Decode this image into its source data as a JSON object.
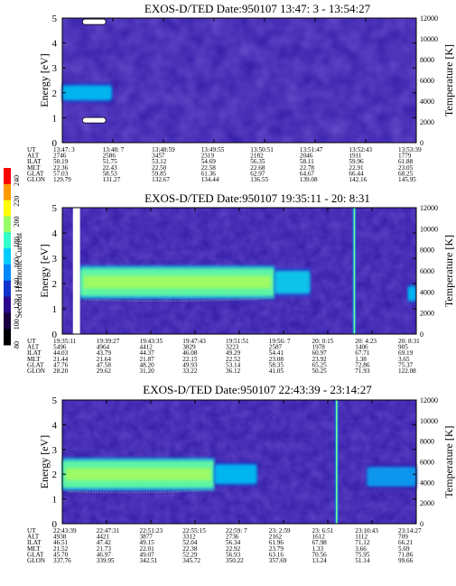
{
  "colorbar": {
    "label": "Second Harmonic Current",
    "ticks": [
      "240",
      "220",
      "200",
      "180",
      "160",
      "140",
      "120",
      "100",
      "80"
    ],
    "colors": [
      "#ff0000",
      "#ff9900",
      "#ffff00",
      "#99ff66",
      "#33ffcc",
      "#00ccff",
      "#0088ff",
      "#1133cc",
      "#2a0a8a",
      "#1a0040",
      "#000000"
    ]
  },
  "panels": [
    {
      "title": "EXOS-D/TED   Date:950107  13:47: 3 - 13:54:27",
      "ylabel": "Energy [eV]",
      "y2label": "Temperature [K]",
      "eph_labels": [
        "UT",
        "ALT",
        "ILAT",
        "MLT",
        "GLAT",
        "GLON"
      ],
      "eph_columns": [
        [
          "13:47: 3",
          "2746",
          "50.19",
          "22.36",
          "57.03",
          "129.79"
        ],
        [
          "13:48: 7",
          "2586",
          "51.75",
          "22.43",
          "58.53",
          "131.27"
        ],
        [
          "13:48:59",
          "3457",
          "53.12",
          "22.50",
          "59.85",
          "132.67"
        ],
        [
          "13:49:55",
          "2319",
          "54.69",
          "22.58",
          "61.36",
          "134.44"
        ],
        [
          "13:50:51",
          "2182",
          "56.35",
          "22.68",
          "62.97",
          "136.55"
        ],
        [
          "13:51:47",
          "2046",
          "58.11",
          "22.78",
          "64.67",
          "139.08"
        ],
        [
          "13:52:43",
          "1911",
          "59.96",
          "22.91",
          "66.44",
          "142.16"
        ],
        [
          "13:53:39",
          "1779",
          "61.88",
          "23.05",
          "68.25",
          "145.95"
        ]
      ]
    },
    {
      "title": "EXOS-D/TED   Date:950107  19:35:11 - 20: 8:31",
      "ylabel": "Energy [eV]",
      "y2label": "Temperature [K]",
      "eph_labels": [
        "UT",
        "ALT",
        "ILAT",
        "MLT",
        "GLAT",
        "GLON"
      ],
      "eph_columns": [
        [
          "19:35:11",
          "5496",
          "44.03",
          "21.44",
          "47.76",
          "28.20"
        ],
        [
          "19:39:27",
          "4964",
          "43.79",
          "21.64",
          "47.58",
          "29.62"
        ],
        [
          "19:43:35",
          "4412",
          "44.37",
          "21.87",
          "48.20",
          "31.20"
        ],
        [
          "19:47:43",
          "3829",
          "46.08",
          "22.15",
          "49.93",
          "33.22"
        ],
        [
          "19:51:51",
          "3223",
          "49.29",
          "22.52",
          "53.14",
          "36.12"
        ],
        [
          "19:56: 7",
          "2587",
          "54.41",
          "23.08",
          "58.35",
          "41.05"
        ],
        [
          "20: 0:15",
          "1978",
          "60.97",
          "23.92",
          "65.25",
          "50.25"
        ],
        [
          "20: 4:23",
          "1406",
          "67.71",
          "1.38",
          "72.86",
          "71.93"
        ],
        [
          "20: 8:31",
          "905",
          "69.19",
          "3.65",
          "75.37",
          "122.08"
        ]
      ]
    },
    {
      "title": "EXOS-D/TED   Date:950107  22:43:39 - 23:14:27",
      "ylabel": "Energy [eV]",
      "y2label": "Temperature [K]",
      "eph_labels": [
        "UT",
        "ALT",
        "ILAT",
        "MLT",
        "GLAT",
        "GLON"
      ],
      "eph_columns": [
        [
          "22:43:39",
          "4938",
          "46.51",
          "21.52",
          "45.70",
          "337.76"
        ],
        [
          "22:47:31",
          "4421",
          "47.42",
          "21.73",
          "46.97",
          "339.95"
        ],
        [
          "22:51:23",
          "3877",
          "49.15",
          "22.01",
          "49.07",
          "342.51"
        ],
        [
          "22:55:15",
          "3312",
          "52.04",
          "22.38",
          "52.29",
          "345.72"
        ],
        [
          "22:59: 7",
          "2736",
          "56.34",
          "22.92",
          "56.93",
          "350.22"
        ],
        [
          "23: 2:59",
          "2162",
          "61.96",
          "23.79",
          "63.16",
          "357.69"
        ],
        [
          "23: 6:51",
          "1612",
          "67.98",
          "1.33",
          "70.56",
          "13.24"
        ],
        [
          "23:10:43",
          "1112",
          "71.12",
          "3.66",
          "75.95",
          "51.14"
        ],
        [
          "23:14:27",
          "709",
          "66.21",
          "5.69",
          "71.86",
          "99.66"
        ]
      ]
    }
  ],
  "chart_data": [
    {
      "type": "heatmap",
      "title": "EXOS-D/TED   Date:950107  13:47: 3 - 13:54:27",
      "xlabel": "",
      "ylabel": "Energy [eV]",
      "y2label": "Temperature [K]",
      "ylim": [
        0,
        5
      ],
      "yticks": [
        0,
        1,
        2,
        3,
        4,
        5
      ],
      "y2lim": [
        0,
        12000
      ],
      "y2ticks": [
        0,
        2000,
        4000,
        6000,
        8000,
        10000,
        12000
      ],
      "x": [
        "13:47: 3",
        "13:48: 7",
        "13:48:59",
        "13:49:55",
        "13:50:51",
        "13:51:47",
        "13:52:43",
        "13:53:39"
      ],
      "colorscale": {
        "label": "Second Harmonic Current",
        "range": [
          80,
          240
        ]
      },
      "background_level": 110,
      "bands": [
        {
          "x_from": 0.0,
          "x_to": 0.14,
          "energy_center": 2.0,
          "energy_halfwidth": 0.3,
          "level": 140
        }
      ],
      "white_markers_energy": [
        4.85,
        0.9
      ]
    },
    {
      "type": "heatmap",
      "title": "EXOS-D/TED   Date:950107  19:35:11 - 20: 8:31",
      "xlabel": "",
      "ylabel": "Energy [eV]",
      "y2label": "Temperature [K]",
      "ylim": [
        0,
        5
      ],
      "yticks": [
        0,
        1,
        2,
        3,
        4,
        5
      ],
      "y2lim": [
        0,
        12000
      ],
      "y2ticks": [
        0,
        2000,
        4000,
        6000,
        8000,
        10000,
        12000
      ],
      "x": [
        "19:35:11",
        "19:39:27",
        "19:43:35",
        "19:47:43",
        "19:51:51",
        "19:56: 7",
        "20: 0:15",
        "20: 4:23",
        "20: 8:31"
      ],
      "colorscale": {
        "label": "Second Harmonic Current",
        "range": [
          80,
          240
        ]
      },
      "background_level": 110,
      "bands": [
        {
          "x_from": 0.05,
          "x_to": 0.6,
          "energy_center": 2.05,
          "energy_halfwidth": 0.55,
          "level": 170
        },
        {
          "x_from": 0.6,
          "x_to": 0.7,
          "energy_center": 2.05,
          "energy_halfwidth": 0.45,
          "level": 145
        },
        {
          "x_from": 0.975,
          "x_to": 1.0,
          "energy_center": 1.6,
          "energy_halfwidth": 0.3,
          "level": 140
        }
      ],
      "gap_x": [
        0.03,
        0.05
      ],
      "spike_x": 0.825
    },
    {
      "type": "heatmap",
      "title": "EXOS-D/TED   Date:950107  22:43:39 - 23:14:27",
      "xlabel": "",
      "ylabel": "Energy [eV]",
      "y2label": "Temperature [K]",
      "ylim": [
        0,
        5
      ],
      "yticks": [
        0,
        1,
        2,
        3,
        4,
        5
      ],
      "y2lim": [
        0,
        12000
      ],
      "y2ticks": [
        0,
        2000,
        4000,
        6000,
        8000,
        10000,
        12000
      ],
      "x": [
        "22:43:39",
        "22:47:31",
        "22:51:23",
        "22:55:15",
        "22:59: 7",
        "23: 2:59",
        "23: 6:51",
        "23:10:43",
        "23:14:27"
      ],
      "colorscale": {
        "label": "Second Harmonic Current",
        "range": [
          80,
          240
        ]
      },
      "background_level": 110,
      "bands": [
        {
          "x_from": 0.0,
          "x_to": 0.43,
          "energy_center": 2.0,
          "energy_halfwidth": 0.55,
          "level": 170
        },
        {
          "x_from": 0.43,
          "x_to": 0.55,
          "energy_center": 2.0,
          "energy_halfwidth": 0.4,
          "level": 140
        },
        {
          "x_from": 0.86,
          "x_to": 1.0,
          "energy_center": 1.9,
          "energy_halfwidth": 0.4,
          "level": 135
        }
      ],
      "spike_x": 0.775
    }
  ]
}
